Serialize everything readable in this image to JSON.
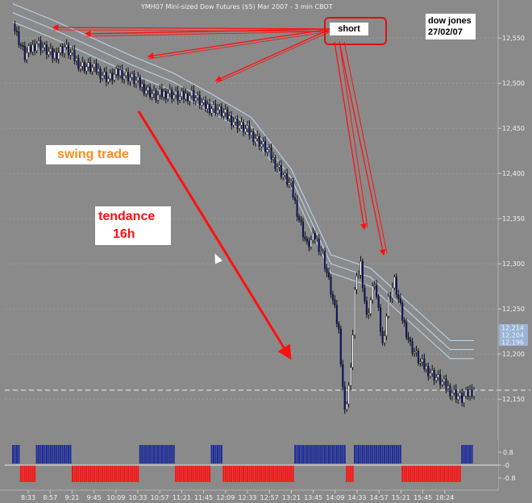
{
  "chart_data": {
    "type": "candlestick",
    "title": "YMH07 Mini-sized Dow Futures ($5) Mar 2007 - 3 min  CBOT",
    "date_label": "27/02/07",
    "ylim": [
      12110,
      12585
    ],
    "y_ticks": [
      12550,
      12500,
      12450,
      12400,
      12350,
      12300,
      12250,
      12200,
      12150
    ],
    "y_tick_labels": [
      "12,550",
      "12,500",
      "12,450",
      "12,400",
      "12,350",
      "12,300",
      "12,250",
      "12,200",
      "12,150"
    ],
    "x_tick_labels": [
      "8:33",
      "8:57",
      "9:21",
      "9:45",
      "10:09",
      "10:33",
      "10:57",
      "11:21",
      "11:45",
      "12:09",
      "12:33",
      "12:57",
      "13:21",
      "13:45",
      "14:09",
      "14:33",
      "14:57",
      "15:21",
      "15:45",
      "18:24"
    ],
    "close_path": [
      [
        0,
        12565
      ],
      [
        6,
        12530
      ],
      [
        12,
        12545
      ],
      [
        20,
        12530
      ],
      [
        26,
        12540
      ],
      [
        34,
        12520
      ],
      [
        42,
        12515
      ],
      [
        48,
        12505
      ],
      [
        54,
        12512
      ],
      [
        60,
        12505
      ],
      [
        66,
        12495
      ],
      [
        72,
        12485
      ],
      [
        78,
        12490
      ],
      [
        84,
        12484
      ],
      [
        90,
        12488
      ],
      [
        96,
        12475
      ],
      [
        102,
        12472
      ],
      [
        110,
        12460
      ],
      [
        116,
        12450
      ],
      [
        122,
        12440
      ],
      [
        128,
        12425
      ],
      [
        134,
        12405
      ],
      [
        140,
        12385
      ],
      [
        144,
        12350
      ],
      [
        148,
        12320
      ],
      [
        152,
        12330
      ],
      [
        156,
        12310
      ],
      [
        160,
        12270
      ],
      [
        164,
        12225
      ],
      [
        167,
        12135
      ],
      [
        170,
        12180
      ],
      [
        172,
        12270
      ],
      [
        175,
        12300
      ],
      [
        178,
        12240
      ],
      [
        182,
        12280
      ],
      [
        186,
        12210
      ],
      [
        189,
        12260
      ],
      [
        192,
        12280
      ],
      [
        196,
        12240
      ],
      [
        200,
        12210
      ],
      [
        205,
        12190
      ],
      [
        210,
        12180
      ],
      [
        215,
        12170
      ],
      [
        220,
        12160
      ],
      [
        226,
        12150
      ],
      [
        232,
        12162
      ]
    ],
    "band_offsets": [
      22,
      32,
      42
    ],
    "band_sample_idx": [
      0,
      4,
      8,
      12,
      16,
      20,
      24,
      28,
      32,
      36,
      40,
      44
    ],
    "band_samples": [
      12578,
      12560,
      12540,
      12520,
      12502,
      12478,
      12452,
      12395,
      12300,
      12285,
      12245,
      12205
    ],
    "current_price_line": 12160,
    "price_labels": [
      "12,214",
      "12,204",
      "12,196"
    ],
    "oscillator": {
      "y_ticks": [
        "0.8",
        "-0",
        "-0.8"
      ],
      "bars": [
        [
          0,
          0.8
        ],
        [
          4,
          -0.8
        ],
        [
          12,
          0.8
        ],
        [
          30,
          -0.8
        ],
        [
          64,
          0.8
        ],
        [
          82,
          -0.8
        ],
        [
          100,
          0.8
        ],
        [
          106,
          -0.8
        ],
        [
          142,
          0.8
        ],
        [
          168,
          -0.8
        ],
        [
          172,
          0.8
        ],
        [
          196,
          -0.8
        ],
        [
          226,
          0.8
        ],
        [
          232,
          0.8
        ]
      ]
    }
  },
  "annotations": {
    "short_label": "short",
    "index_label": "dow jones",
    "swing_label": "swing trade",
    "trend_label_1": "tendance",
    "trend_label_2": "16h"
  },
  "colors": {
    "background": "#8a8a8a",
    "bear": "#10147a",
    "bull": "#ffffff",
    "band": "#b8d4f0",
    "arrow": "#ff1010",
    "osc_pos": "#1a2a9a",
    "osc_neg": "#ff1010",
    "swing_text": "#ff8a20",
    "trend_text": "#ff1010"
  }
}
